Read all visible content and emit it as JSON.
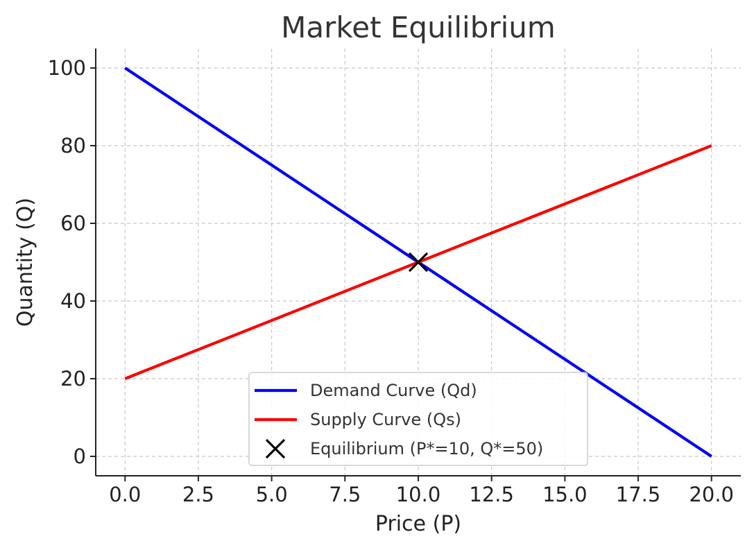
{
  "chart_data": {
    "type": "line",
    "title": "Market Equilibrium",
    "xlabel": "Price (P)",
    "ylabel": "Quantity (Q)",
    "xlim": [
      -1,
      21
    ],
    "ylim": [
      -5,
      105
    ],
    "xticks": [
      0,
      2.5,
      5,
      7.5,
      10,
      12.5,
      15,
      17.5,
      20
    ],
    "xtick_labels": [
      "0.0",
      "2.5",
      "5.0",
      "7.5",
      "10.0",
      "12.5",
      "15.0",
      "17.5",
      "20.0"
    ],
    "yticks": [
      0,
      20,
      40,
      60,
      80,
      100
    ],
    "ytick_labels": [
      "0",
      "20",
      "40",
      "60",
      "80",
      "100"
    ],
    "grid": true,
    "legend_position": "lower-center",
    "series": [
      {
        "name": "Demand Curve (Qd)",
        "color": "#0000ff",
        "x": [
          0,
          20
        ],
        "y": [
          100,
          0
        ]
      },
      {
        "name": "Supply Curve (Qs)",
        "color": "#ff0000",
        "x": [
          0,
          20
        ],
        "y": [
          20,
          80
        ]
      }
    ],
    "points": [
      {
        "name": "Equilibrium (P*=10, Q*=50)",
        "x": 10,
        "y": 50,
        "marker": "x",
        "color": "#000000"
      }
    ]
  }
}
